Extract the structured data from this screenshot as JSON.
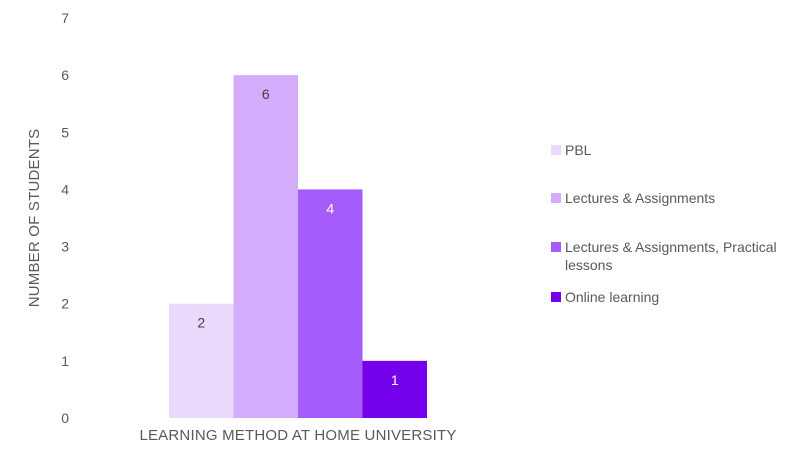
{
  "chart_data": {
    "type": "bar",
    "xlabel": "LEARNING METHOD AT HOME UNIVERSITY",
    "ylabel": "NUMBER OF STUDENTS",
    "ylim": [
      0,
      7
    ],
    "yticks": [
      "0",
      "1",
      "2",
      "3",
      "4",
      "5",
      "6",
      "7"
    ],
    "grid": false,
    "legend_position": "right",
    "series": [
      {
        "name": "PBL",
        "value": 2,
        "label": "2",
        "color": "#ead9fb"
      },
      {
        "name": "Lectures & Assignments",
        "value": 6,
        "label": "6",
        "color": "#d3adfb"
      },
      {
        "name": "Lectures & Assignments, Practical lessons",
        "value": 4,
        "label": "4",
        "color": "#a65cfb"
      },
      {
        "name": "Online learning",
        "value": 1,
        "label": "1",
        "color": "#7400ec"
      }
    ]
  }
}
